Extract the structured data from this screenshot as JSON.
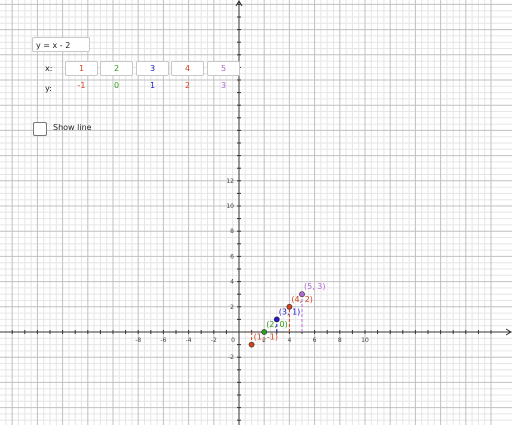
{
  "equation": {
    "value": "y = x - 2"
  },
  "table": {
    "x_label": "x:",
    "y_label": "y:",
    "columns": [
      {
        "x": "1",
        "y": "-1",
        "color": "#d2411f"
      },
      {
        "x": "2",
        "y": "0",
        "color": "#2e9d18"
      },
      {
        "x": "3",
        "y": "1",
        "color": "#2019c0"
      },
      {
        "x": "4",
        "y": "2",
        "color": "#d2411f"
      },
      {
        "x": "5",
        "y": "3",
        "color": "#b067d0"
      }
    ]
  },
  "checkbox": {
    "label": "Show line",
    "checked": false
  },
  "graph": {
    "x_ticks": [
      "-8",
      "-6",
      "-4",
      "-2",
      "2",
      "4",
      "6",
      "8",
      "10"
    ],
    "y_ticks": [
      "12",
      "10",
      "8",
      "6",
      "4",
      "2",
      "-2"
    ],
    "origin_label": "0",
    "points": [
      {
        "x": 1,
        "y": -1,
        "label": "(1, -1)",
        "color": "#d2411f"
      },
      {
        "x": 2,
        "y": 0,
        "label": "(2, 0)",
        "color": "#2e9d18"
      },
      {
        "x": 3,
        "y": 1,
        "label": "(3, 1)",
        "color": "#2019c0"
      },
      {
        "x": 4,
        "y": 2,
        "label": "(4, 2)",
        "color": "#d2411f"
      },
      {
        "x": 5,
        "y": 3,
        "label": "(5, 3)",
        "color": "#b067d0"
      }
    ]
  }
}
